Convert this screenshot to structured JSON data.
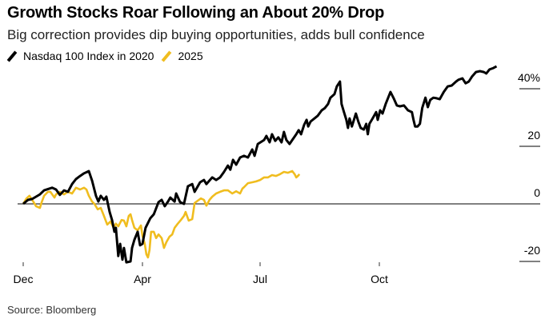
{
  "chart_data": {
    "type": "line",
    "title": "Growth Stocks Roar Following an About 20% Drop",
    "subtitle": "Big correction provides dip buying opportunities, adds bull confidence",
    "source": "Source: Bloomberg",
    "legend_placement": "top-left",
    "ylim": [
      -20,
      48
    ],
    "grid": false,
    "y_ticks": [
      {
        "value": 40,
        "label": "40%"
      },
      {
        "value": 20,
        "label": "20"
      },
      {
        "value": 0,
        "label": "0"
      },
      {
        "value": -20,
        "label": "-20"
      }
    ],
    "x_ticks": [
      {
        "label": "Dec",
        "x": 0
      },
      {
        "label": "Apr",
        "x": 4
      },
      {
        "label": "Jul",
        "x": 7
      },
      {
        "label": "Oct",
        "x": 10
      }
    ],
    "series": [
      {
        "name": "Nasdaq 100 Index in 2020",
        "color": "#000000",
        "x": [
          0,
          0.16,
          0.3,
          0.56,
          0.7,
          0.97,
          1.1,
          1.23,
          1.37,
          1.5,
          1.64,
          1.77,
          1.91,
          2.04,
          2.2,
          2.31,
          2.44,
          2.52,
          2.6,
          2.71,
          2.79,
          2.9,
          2.98,
          3.06,
          3.11,
          3.19,
          3.25,
          3.33,
          3.38,
          3.46,
          3.6,
          3.65,
          3.73,
          3.84,
          3.92,
          4,
          4.08,
          4.2,
          4.29,
          4.41,
          4.49,
          4.57,
          4.65,
          4.71,
          4.82,
          4.86,
          4.96,
          5.06,
          5.16,
          5.27,
          5.33,
          5.47,
          5.57,
          5.63,
          5.78,
          5.88,
          5.98,
          6.08,
          6.18,
          6.24,
          6.31,
          6.39,
          6.49,
          6.59,
          6.69,
          6.8,
          6.86,
          6.94,
          7.1,
          7.16,
          7.24,
          7.3,
          7.38,
          7.46,
          7.54,
          7.6,
          7.66,
          7.74,
          7.81,
          7.91,
          7.97,
          8.03,
          8.11,
          8.17,
          8.21,
          8.27,
          8.37,
          8.45,
          8.55,
          8.63,
          8.71,
          8.77,
          8.87,
          8.93,
          9.01,
          9.05,
          9.11,
          9.17,
          9.21,
          9.25,
          9.31,
          9.41,
          9.47,
          9.53,
          9.61,
          9.67,
          9.71,
          9.75,
          9.83,
          9.92,
          9.96,
          10.02,
          10.08,
          10.16,
          10.28,
          10.36,
          10.44,
          10.52,
          10.62,
          10.72,
          10.82,
          10.86,
          10.9,
          10.96,
          11.02,
          11.08,
          11.16,
          11.22,
          11.28,
          11.36,
          11.44,
          11.52,
          11.62,
          11.72,
          11.82,
          11.93,
          11.99,
          12.09,
          12.17,
          12.25,
          12.33,
          12.43,
          12.53,
          12.63,
          12.69,
          12.77,
          12.87,
          12.95
        ],
        "y": [
          0,
          1.4,
          1.7,
          3.3,
          4.7,
          5.6,
          5.0,
          3.1,
          4.7,
          4.2,
          6.9,
          8.6,
          9.7,
          10.6,
          11.4,
          8.1,
          2.8,
          0.8,
          2.8,
          1.4,
          2.5,
          -2.8,
          -5.6,
          -9.7,
          -8.3,
          -18.1,
          -13.9,
          -19.4,
          -15.3,
          -20.3,
          -20.0,
          -15.3,
          -12.5,
          -9.7,
          -14.4,
          -13.9,
          -8.3,
          -5.0,
          -3.6,
          0.6,
          1.4,
          -0.8,
          0.8,
          2.2,
          0.8,
          3.6,
          0.6,
          0,
          6.1,
          6.9,
          4.2,
          7.5,
          8.3,
          6.9,
          9.2,
          8.3,
          9.2,
          11.1,
          13.3,
          11.9,
          15.3,
          13.6,
          16.1,
          16.7,
          16.1,
          18.9,
          16.7,
          20.8,
          22.2,
          23.6,
          21.4,
          24.2,
          21.9,
          23.1,
          21.4,
          25.0,
          22.2,
          20.8,
          22.2,
          24.2,
          25.6,
          24.2,
          27.5,
          29.2,
          26.9,
          28.6,
          29.7,
          30.6,
          32.5,
          33.3,
          34.7,
          36.9,
          38.1,
          40.8,
          42.5,
          34.7,
          31.9,
          29.2,
          26.4,
          29.7,
          26.9,
          31.4,
          28.6,
          26.4,
          25.8,
          27.8,
          24.2,
          27.8,
          29.7,
          31.9,
          29.2,
          32.5,
          31.4,
          34.7,
          38.9,
          36.7,
          34.2,
          33.9,
          34.2,
          32.5,
          31.9,
          29.2,
          26.9,
          26.9,
          27.8,
          33.3,
          36.9,
          33.6,
          36.1,
          36.9,
          36.7,
          36.4,
          38.9,
          40.8,
          41.1,
          42.5,
          43.1,
          43.6,
          41.9,
          42.5,
          44.2,
          45.8,
          46.1,
          45.8,
          45.3,
          46.7,
          47.2,
          47.8
        ]
      },
      {
        "name": "2025",
        "color": "#f0bd1f",
        "x": [
          0,
          0.11,
          0.21,
          0.35,
          0.43,
          0.56,
          0.62,
          0.7,
          0.83,
          0.91,
          1.05,
          1.1,
          1.23,
          1.37,
          1.5,
          1.64,
          1.77,
          1.91,
          2.04,
          2.12,
          2.2,
          2.31,
          2.39,
          2.5,
          2.6,
          2.71,
          2.82,
          2.93,
          3.03,
          3.11,
          3.19,
          3.3,
          3.38,
          3.46,
          3.54,
          3.6,
          3.65,
          3.73,
          3.84,
          3.95,
          4,
          4.06,
          4.1,
          4.14,
          4.18,
          4.22,
          4.29,
          4.35,
          4.41,
          4.49,
          4.55,
          4.61,
          4.69,
          4.76,
          4.82,
          4.9,
          4.98,
          5.06,
          5.1,
          5.18,
          5.27,
          5.33,
          5.41,
          5.49,
          5.57,
          5.63,
          5.71,
          5.78,
          5.88,
          5.98,
          6.08,
          6.18,
          6.29,
          6.39,
          6.49,
          6.55,
          6.59,
          6.69,
          6.8,
          6.9,
          7,
          7.1,
          7.2,
          7.3,
          7.4,
          7.5,
          7.6,
          7.7,
          7.81,
          7.87,
          7.91,
          7.95,
          7.99
        ],
        "y": [
          0,
          1.9,
          2.8,
          0.6,
          -0.8,
          -1.4,
          0.6,
          2.8,
          4.2,
          4.2,
          2.2,
          3.3,
          4.2,
          3.3,
          4.2,
          3.6,
          5.6,
          5.0,
          5.6,
          5.0,
          2.8,
          0.8,
          0,
          -1.9,
          -1.4,
          -4.2,
          -7.2,
          -6.1,
          -8.3,
          -6.9,
          -7.8,
          -5.6,
          -5.8,
          -7.8,
          -4.2,
          -3.6,
          -5.6,
          -8.3,
          -9.2,
          -7.5,
          -11.1,
          -13.9,
          -17.5,
          -18.6,
          -16.1,
          -9.7,
          -9.7,
          -11.9,
          -10.6,
          -11.9,
          -15.3,
          -13.3,
          -11.4,
          -10.6,
          -8.3,
          -6.9,
          -5.6,
          -4.2,
          -2.8,
          -5.8,
          -5.3,
          0.3,
          1.1,
          1.9,
          1.4,
          -0.6,
          1.4,
          2.5,
          3.6,
          4.2,
          4.7,
          4.7,
          3.6,
          4.4,
          3.6,
          5.3,
          5.8,
          7.2,
          7.5,
          7.8,
          8.3,
          9.2,
          9.2,
          10.0,
          9.7,
          10.3,
          11.1,
          10.8,
          11.4,
          10.3,
          9.2,
          9.7,
          10.3
        ]
      }
    ]
  }
}
